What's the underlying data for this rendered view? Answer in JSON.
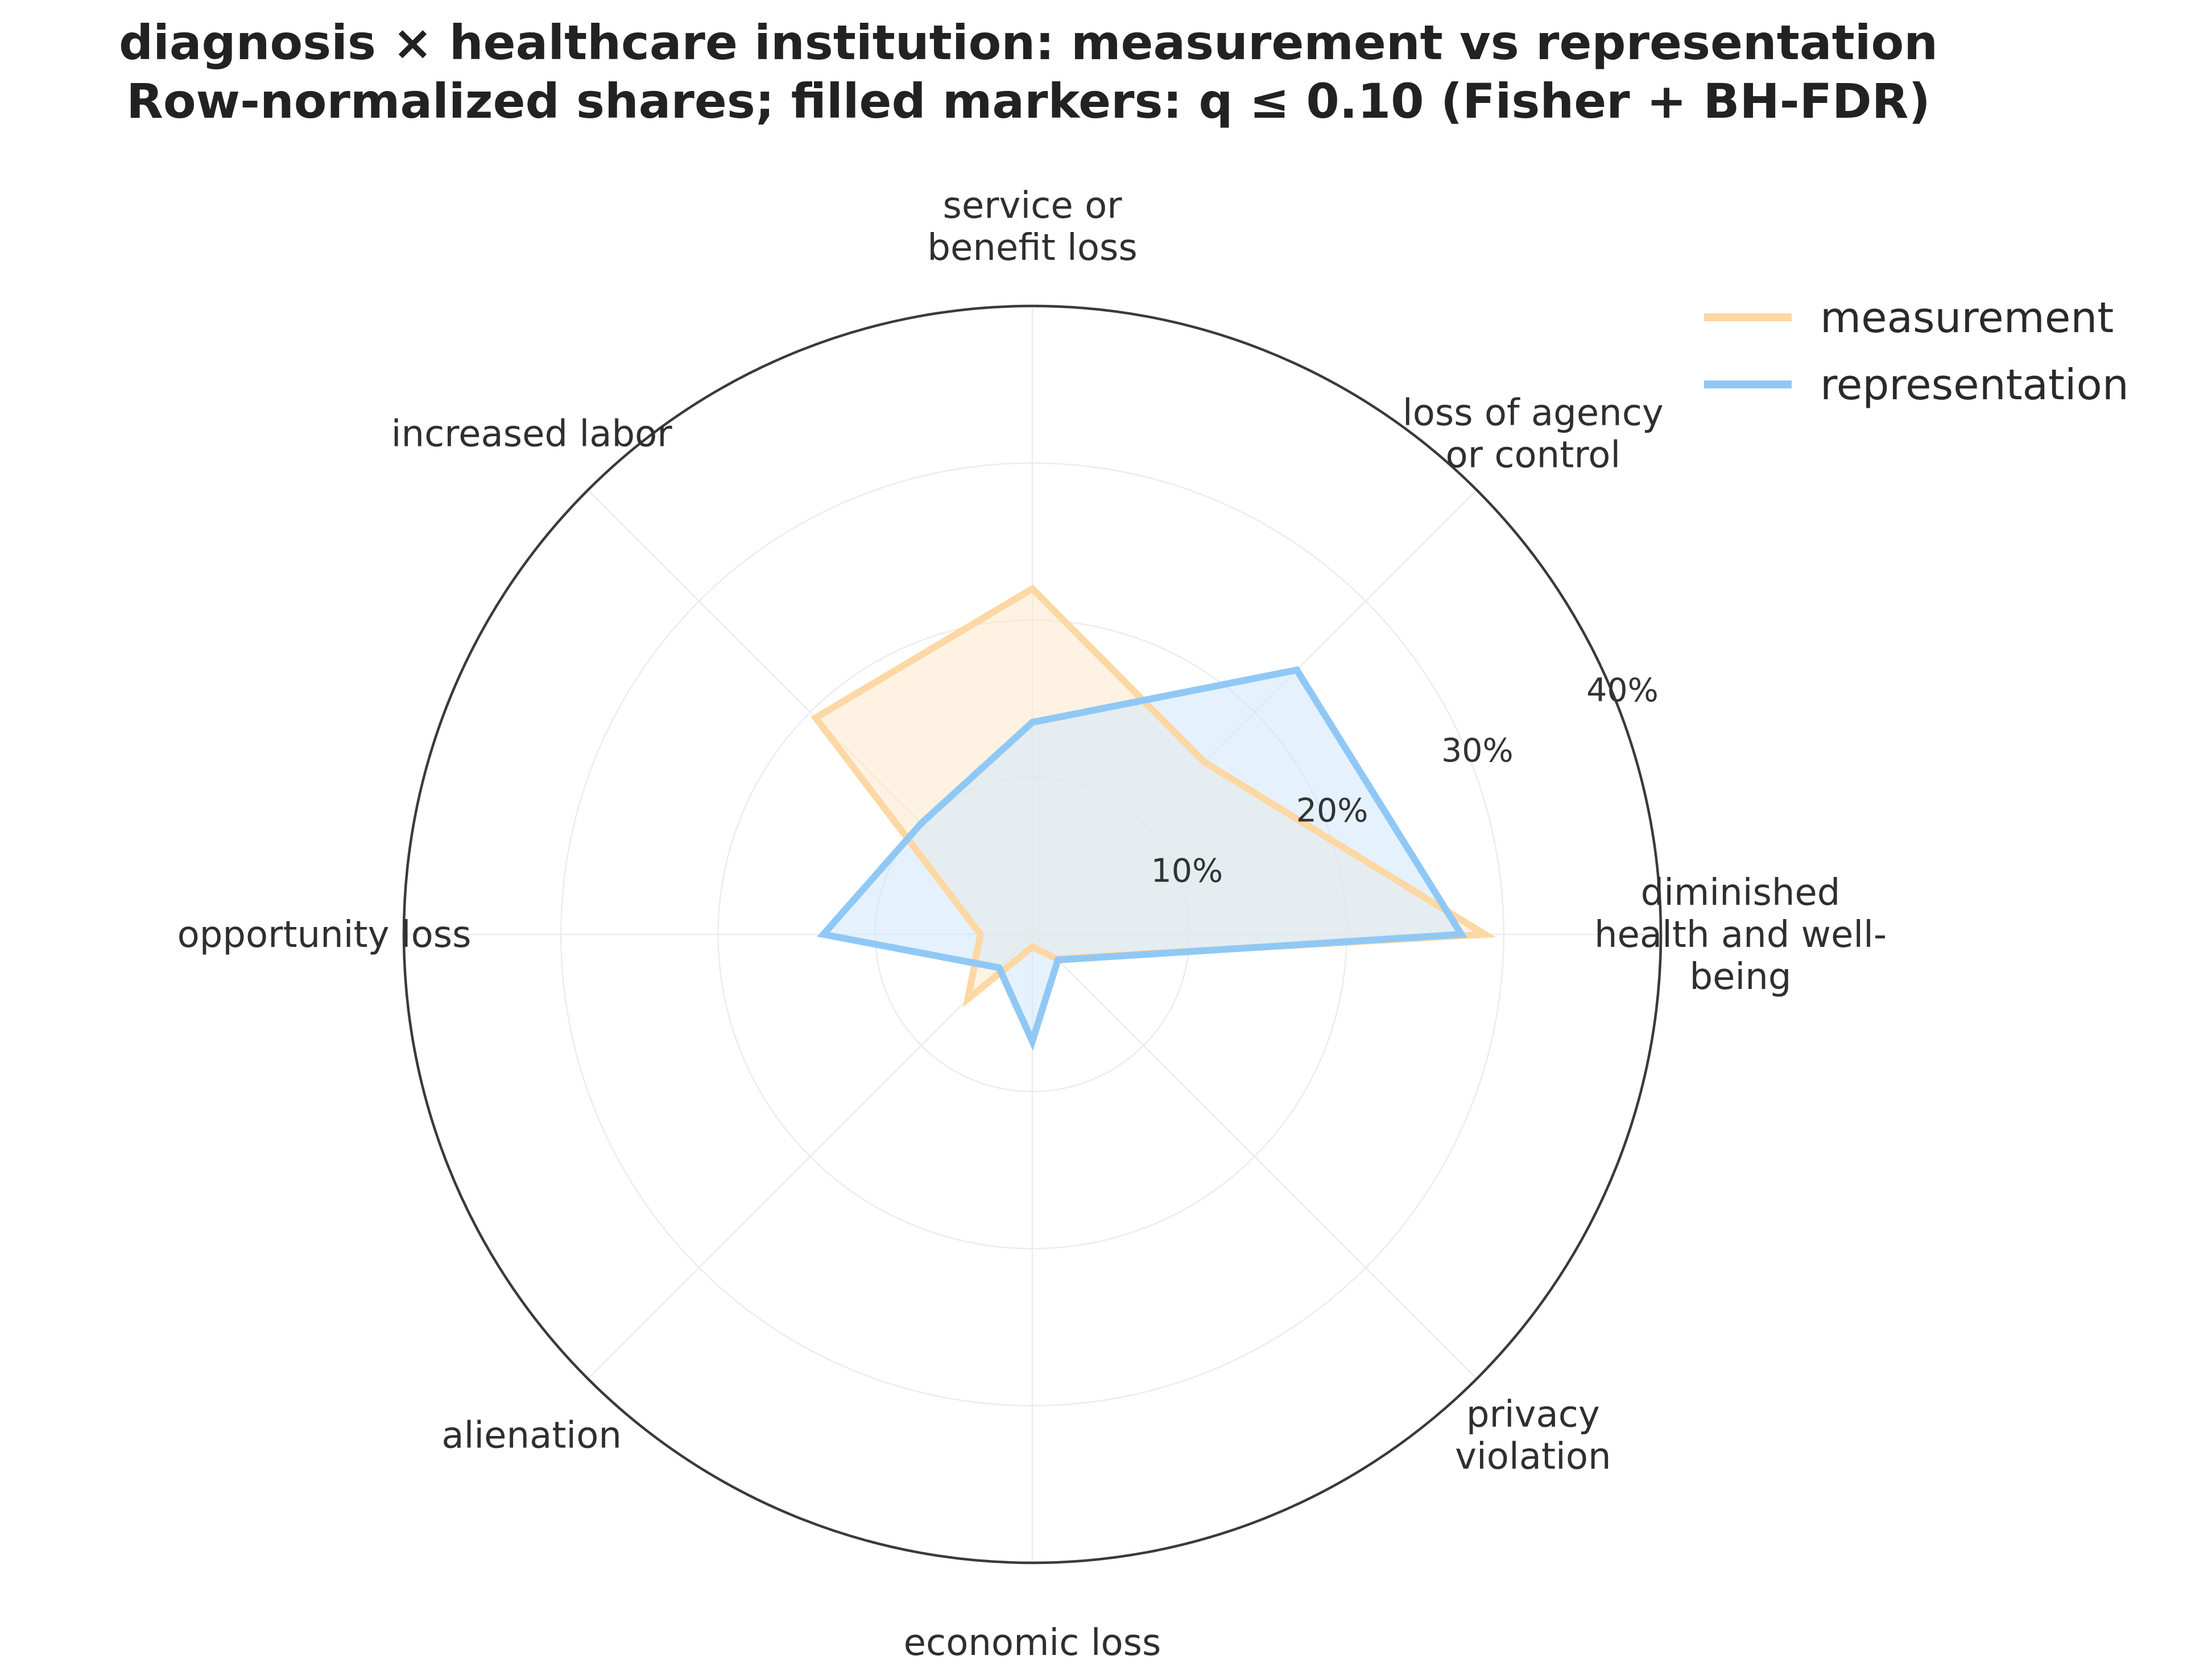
{
  "chart_data": {
    "type": "radar",
    "title": "diagnosis × healthcare institution: measurement vs representation",
    "subtitle": "Row-normalized shares; filled markers: q ≤ 0.10 (Fisher + BH-FDR)",
    "categories": [
      [
        "diminished",
        "health and well-",
        "being"
      ],
      [
        "loss of agency",
        "or control"
      ],
      [
        "service or",
        "benefit loss"
      ],
      [
        "increased labor"
      ],
      [
        "opportunity loss"
      ],
      [
        "alienation"
      ],
      [
        "economic loss"
      ],
      [
        "privacy",
        "violation"
      ]
    ],
    "radial_ticks": [
      "10%",
      "20%",
      "30%",
      "40%"
    ],
    "rlim": [
      0,
      40
    ],
    "series": [
      {
        "name": "measurement",
        "color": "#fdd8a4",
        "fill": "#fde9cc",
        "values": [
          28.8,
          15.5,
          22.0,
          19.5,
          3.3,
          5.8,
          0.8,
          2.2
        ]
      },
      {
        "name": "representation",
        "color": "#90c8f5",
        "fill": "#cfe7fb",
        "values": [
          27.3,
          23.8,
          13.5,
          10.0,
          13.3,
          3.0,
          6.8,
          2.3
        ]
      }
    ],
    "grid": true,
    "legend": "top-right"
  }
}
